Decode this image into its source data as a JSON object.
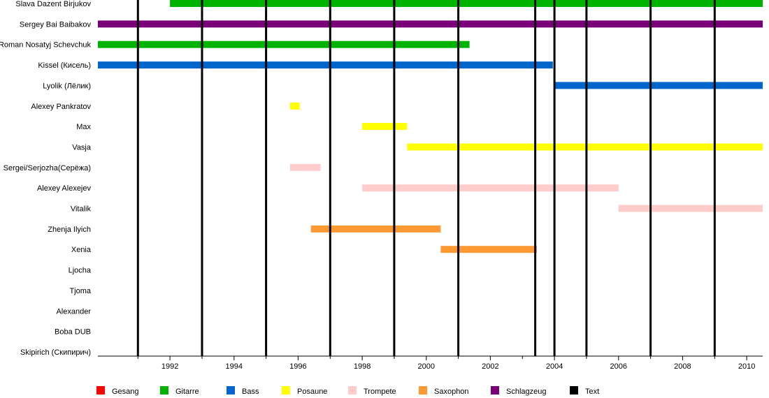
{
  "chart_data": {
    "type": "timeline",
    "xlim": [
      1989.75,
      2010.5
    ],
    "members": [
      "Slava Dazent Birjukov",
      "Sergey Bai Baibakov",
      "Roman Nosatyj Schevchuk",
      "Kissel (Кисель)",
      "Lyolik (Лёлик)",
      "Alexey Pankratov",
      "Max",
      "Vasja",
      "Sergei/Serjozha(Серёжа)",
      "Alexey Alexejev",
      "Vitalik",
      "Zhenja Ilyich",
      "Xenia",
      "Ljocha",
      "Tjoma",
      "Alexander",
      "Boba DUB",
      "Skipirich (Скипирич)"
    ],
    "bars": [
      {
        "member": "Slava Dazent Birjukov",
        "role": "Gitarre",
        "start": 1992.0,
        "end": 2010.5
      },
      {
        "member": "Sergey Bai Baibakov",
        "role": "Schlagzeug",
        "start": 1989.75,
        "end": 2010.5
      },
      {
        "member": "Roman Nosatyj Schevchuk",
        "role": "Gitarre",
        "start": 1989.75,
        "end": 2001.35
      },
      {
        "member": "Kissel (Кисель)",
        "role": "Bass",
        "start": 1989.75,
        "end": 2003.95
      },
      {
        "member": "Lyolik (Лёлик)",
        "role": "Bass",
        "start": 2004.0,
        "end": 2010.5
      },
      {
        "member": "Alexey Pankratov",
        "role": "Posaune",
        "start": 1995.75,
        "end": 1996.05
      },
      {
        "member": "Max",
        "role": "Posaune",
        "start": 1998.0,
        "end": 1999.4
      },
      {
        "member": "Vasja",
        "role": "Posaune",
        "start": 1999.4,
        "end": 2010.5
      },
      {
        "member": "Sergei/Serjozha(Серёжа)",
        "role": "Trompete",
        "start": 1995.75,
        "end": 1996.7
      },
      {
        "member": "Alexey Alexejev",
        "role": "Trompete",
        "start": 1998.0,
        "end": 2006.0
      },
      {
        "member": "Vitalik",
        "role": "Trompete",
        "start": 2006.0,
        "end": 2010.5
      },
      {
        "member": "Zhenja Ilyich",
        "role": "Saxophon",
        "start": 1996.4,
        "end": 2000.45
      },
      {
        "member": "Xenia",
        "role": "Saxophon",
        "start": 2000.45,
        "end": 2003.45
      }
    ],
    "release_lines": [
      1991.0,
      1993.0,
      1995.0,
      1997.0,
      1999.0,
      2001.0,
      2003.4,
      2004.0,
      2005.0,
      2007.0,
      2009.0
    ],
    "major_ticks": [
      1992,
      1994,
      1996,
      1998,
      2000,
      2002,
      2004,
      2006,
      2008,
      2010
    ],
    "minor_ticks": [
      1991,
      1993,
      1995,
      1997,
      1999,
      2001,
      2003,
      2005,
      2007,
      2009
    ],
    "legend": [
      {
        "label": "Gesang",
        "color": "#ff0000"
      },
      {
        "label": "Gitarre",
        "color": "#00b300"
      },
      {
        "label": "Bass",
        "color": "#0066cc"
      },
      {
        "label": "Posaune",
        "color": "#ffff00"
      },
      {
        "label": "Trompete",
        "color": "#ffcccc"
      },
      {
        "label": "Saxophon",
        "color": "#ff9933"
      },
      {
        "label": "Schlagzeug",
        "color": "#7a007a"
      },
      {
        "label": "Text",
        "color": "#000000"
      }
    ]
  }
}
